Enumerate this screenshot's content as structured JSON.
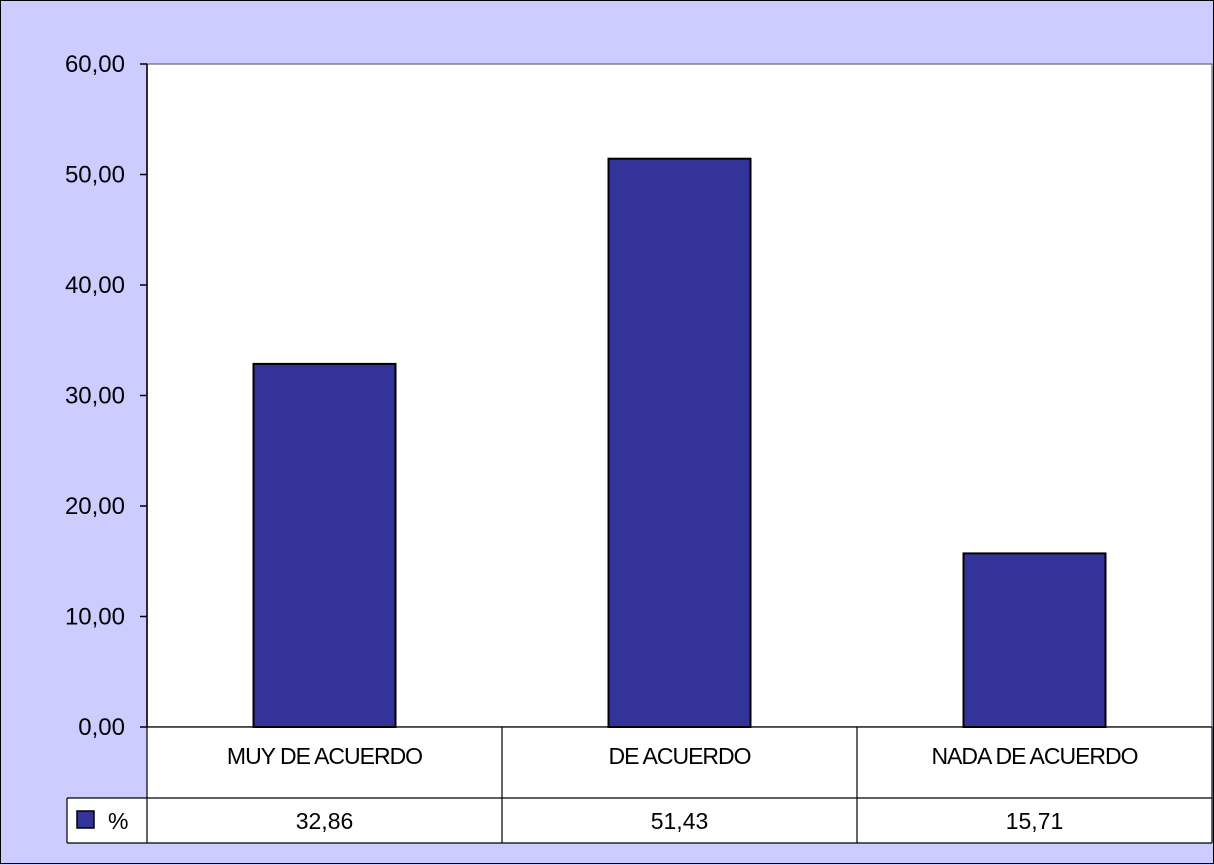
{
  "chart_data": {
    "type": "bar",
    "categories": [
      "MUY DE ACUERDO",
      "DE ACUERDO",
      "NADA DE ACUERDO"
    ],
    "series": [
      {
        "name": "%",
        "values": [
          32.86,
          51.43,
          15.71
        ]
      }
    ],
    "value_labels": [
      "32,86",
      "51,43",
      "15,71"
    ],
    "y_ticks": [
      "0,00",
      "10,00",
      "20,00",
      "30,00",
      "40,00",
      "50,00",
      "60,00"
    ],
    "ylim": [
      0,
      60
    ],
    "grid": false,
    "data_table": true,
    "legend_position": "data-table-left",
    "colors": {
      "background": "#ccccff",
      "plot_area": "#ffffff",
      "bar": "#333399"
    }
  }
}
